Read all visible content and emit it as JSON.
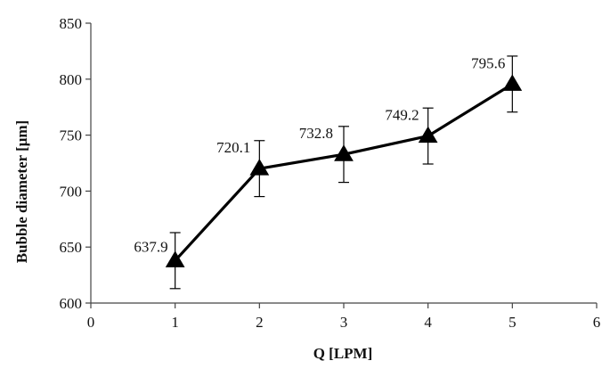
{
  "chart_data": {
    "type": "line",
    "title": "",
    "xlabel": "Q [LPM]",
    "ylabel": "Bubble diameter [μm]",
    "xlim": [
      0,
      6
    ],
    "ylim": [
      600,
      850
    ],
    "x_ticks": [
      0,
      1,
      2,
      3,
      4,
      5,
      6
    ],
    "y_ticks": [
      600,
      650,
      700,
      750,
      800,
      850
    ],
    "grid": false,
    "marker": "triangle",
    "line_color": "#000000",
    "series": [
      {
        "x": [
          1,
          2,
          3,
          4,
          5
        ],
        "y": [
          637.9,
          720.1,
          732.8,
          749.2,
          795.6
        ],
        "error": [
          25,
          25,
          25,
          25,
          25
        ],
        "labels": [
          "637.9",
          "720.1",
          "732.8",
          "749.2",
          "795.6"
        ]
      }
    ]
  }
}
